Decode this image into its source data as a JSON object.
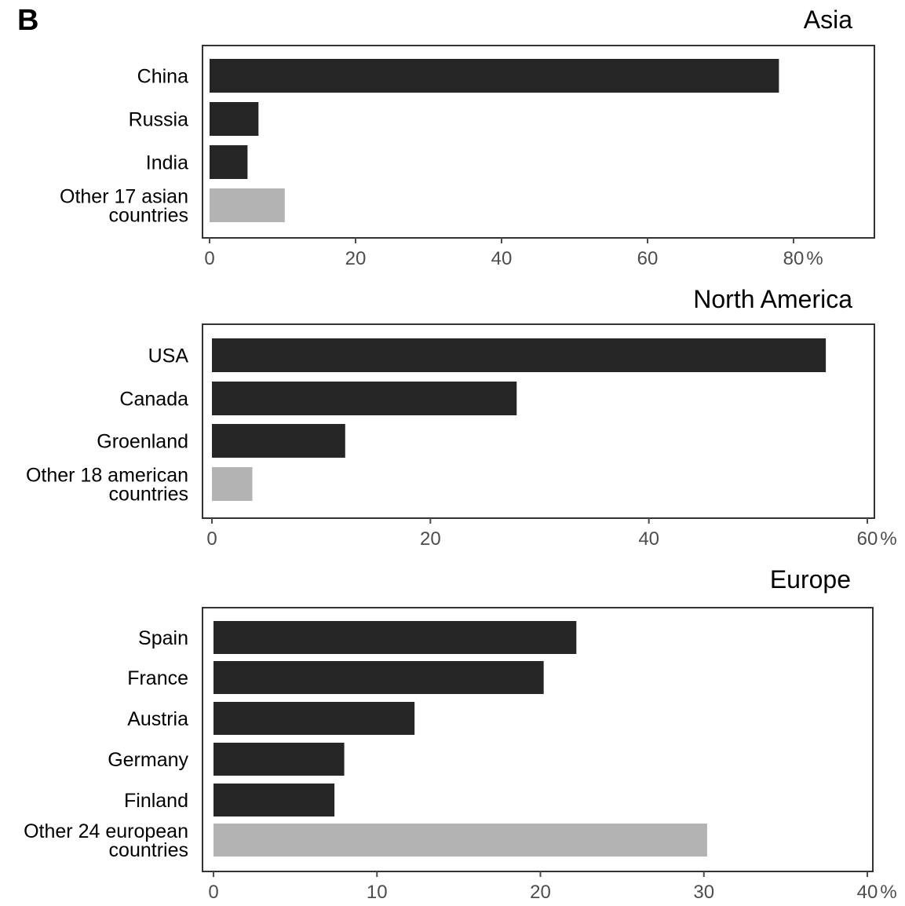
{
  "panel_letter": "B",
  "chart_data": [
    {
      "type": "bar",
      "orientation": "horizontal",
      "title": "Asia",
      "categories": [
        "China",
        "Russia",
        "India",
        "Other 17 asian countries"
      ],
      "category_lines": [
        [
          "China"
        ],
        [
          "Russia"
        ],
        [
          "India"
        ],
        [
          "Other 17 asian",
          "countries"
        ]
      ],
      "values": [
        78,
        6.7,
        5.2,
        10.3
      ],
      "highlight": [
        false,
        false,
        false,
        true
      ],
      "xlim": [
        0,
        91
      ],
      "ticks": [
        0,
        20,
        40,
        60,
        80
      ],
      "tick_labels": [
        "0",
        "20",
        "40",
        "60",
        "80"
      ],
      "unit": "%",
      "grid": false
    },
    {
      "type": "bar",
      "orientation": "horizontal",
      "title": "North America",
      "categories": [
        "USA",
        "Canada",
        "Groenland",
        "Other 18 american countries"
      ],
      "category_lines": [
        [
          "USA"
        ],
        [
          "Canada"
        ],
        [
          "Groenland"
        ],
        [
          "Other 18 american",
          "countries"
        ]
      ],
      "values": [
        56.2,
        27.9,
        12.2,
        3.7
      ],
      "highlight": [
        false,
        false,
        false,
        true
      ],
      "xlim": [
        0,
        60
      ],
      "ticks": [
        0,
        20,
        40,
        60
      ],
      "tick_labels": [
        "0",
        "20",
        "40",
        "60"
      ],
      "unit": "%",
      "grid": false
    },
    {
      "type": "bar",
      "orientation": "horizontal",
      "title": "Europe",
      "categories": [
        "Spain",
        "France",
        "Austria",
        "Germany",
        "Finland",
        "Other 24 european countries"
      ],
      "category_lines": [
        [
          "Spain"
        ],
        [
          "France"
        ],
        [
          "Austria"
        ],
        [
          "Germany"
        ],
        [
          "Finland"
        ],
        [
          "Other 24 european",
          "countries"
        ]
      ],
      "values": [
        22.2,
        20.2,
        12.3,
        8.0,
        7.4,
        30.2
      ],
      "highlight": [
        false,
        false,
        false,
        false,
        false,
        true
      ],
      "xlim": [
        0,
        40
      ],
      "ticks": [
        0,
        10,
        20,
        30,
        40
      ],
      "tick_labels": [
        "0",
        "10",
        "20",
        "30",
        "40"
      ],
      "unit": "%",
      "grid": false
    }
  ],
  "colors": {
    "bar": "#262626",
    "bar_other": "#b3b3b3",
    "frame": "#333333",
    "tick": "#4d4d4d"
  }
}
